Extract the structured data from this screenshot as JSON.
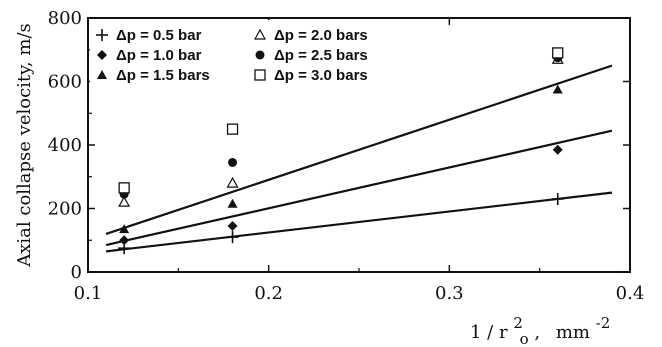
{
  "chart_data": {
    "type": "scatter",
    "title": "",
    "ylabel": "Axial collapse velocity,  m/s",
    "xlabel": {
      "base": "1 / r",
      "sup": "2",
      "sub": "o",
      "unit_base": "mm",
      "unit_sup": "-2"
    },
    "xlim": [
      0.1,
      0.4
    ],
    "ylim": [
      0,
      800
    ],
    "xticks": [
      "0.1",
      "0.2",
      "0.3",
      "0.4"
    ],
    "yticks": [
      "0",
      "200",
      "400",
      "600",
      "800"
    ],
    "grid": false,
    "legend_position": "top-left",
    "series": [
      {
        "name": "Δp = 0.5 bar",
        "marker": "plus",
        "x": [
          0.12,
          0.18,
          0.36
        ],
        "y": [
          75,
          110,
          230
        ]
      },
      {
        "name": "Δp = 1.0 bar",
        "marker": "diamond",
        "x": [
          0.12,
          0.18,
          0.36
        ],
        "y": [
          100,
          145,
          385
        ]
      },
      {
        "name": "Δp = 1.5 bars",
        "marker": "triangle-filled",
        "x": [
          0.12,
          0.18,
          0.36
        ],
        "y": [
          135,
          215,
          575
        ]
      },
      {
        "name": "Δp = 2.0 bars",
        "marker": "triangle-open",
        "x": [
          0.12,
          0.18,
          0.36
        ],
        "y": [
          220,
          280,
          670
        ]
      },
      {
        "name": "Δp = 2.5 bars",
        "marker": "circle-filled",
        "x": [
          0.12,
          0.18,
          0.36
        ],
        "y": [
          245,
          345,
          675
        ]
      },
      {
        "name": "Δp = 3.0 bars",
        "marker": "square-open",
        "x": [
          0.12,
          0.18,
          0.36
        ],
        "y": [
          265,
          450,
          690
        ]
      }
    ],
    "fit_lines": [
      {
        "series": "Δp = 0.5 bar",
        "x": [
          0.11,
          0.39
        ],
        "y": [
          65,
          250
        ]
      },
      {
        "series": "Δp = 1.0 bar",
        "x": [
          0.11,
          0.39
        ],
        "y": [
          85,
          445
        ]
      },
      {
        "series": "Δp = 1.5 bars",
        "x": [
          0.11,
          0.39
        ],
        "y": [
          120,
          650
        ]
      }
    ]
  }
}
